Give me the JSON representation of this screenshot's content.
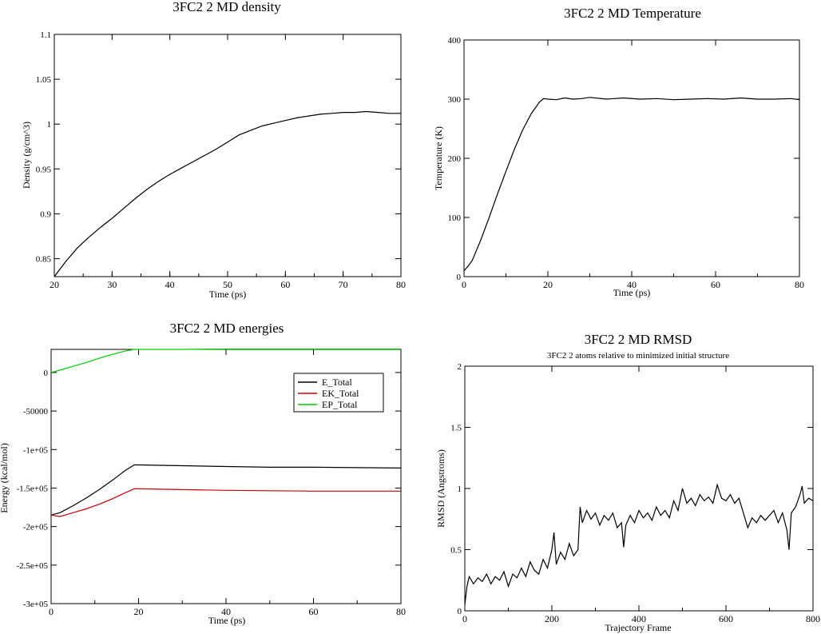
{
  "chart_data": [
    {
      "id": "density",
      "type": "line",
      "title": "3FC2 2 MD density",
      "xlabel": "Time (ps)",
      "ylabel": "Density (g/cm^3)",
      "xlim": [
        20,
        80
      ],
      "ylim": [
        0.83,
        1.1
      ],
      "xticks": [
        20,
        30,
        40,
        50,
        60,
        70,
        80
      ],
      "xtick_labels": [
        "20",
        "30",
        "40",
        "50",
        "60",
        "70",
        "80"
      ],
      "yticks": [
        0.85,
        0.9,
        0.95,
        1.0,
        1.05,
        1.1
      ],
      "ytick_labels": [
        "0.85",
        "0.9",
        "0.95",
        "1",
        "1.05",
        "1.1"
      ],
      "series": [
        {
          "color": "#000000",
          "x": [
            20,
            22,
            24,
            26,
            28,
            30,
            32,
            34,
            36,
            38,
            40,
            42,
            44,
            46,
            48,
            50,
            52,
            54,
            56,
            58,
            60,
            62,
            64,
            66,
            68,
            70,
            72,
            74,
            76,
            78,
            80
          ],
          "y": [
            0.83,
            0.847,
            0.862,
            0.874,
            0.885,
            0.895,
            0.906,
            0.917,
            0.927,
            0.936,
            0.944,
            0.951,
            0.958,
            0.965,
            0.972,
            0.98,
            0.988,
            0.993,
            0.998,
            1.001,
            1.004,
            1.007,
            1.009,
            1.011,
            1.012,
            1.013,
            1.013,
            1.014,
            1.013,
            1.012,
            1.012
          ]
        }
      ]
    },
    {
      "id": "temperature",
      "type": "line",
      "title": "3FC2 2 MD Temperature",
      "xlabel": "Time (ps)",
      "ylabel": "Temperature (K)",
      "xlim": [
        0,
        80
      ],
      "ylim": [
        0,
        400
      ],
      "xticks": [
        0,
        20,
        40,
        60,
        80
      ],
      "xtick_labels": [
        "0",
        "20",
        "40",
        "60",
        "80"
      ],
      "yticks": [
        0,
        100,
        200,
        300,
        400
      ],
      "ytick_labels": [
        "0",
        "100",
        "200",
        "300",
        "400"
      ],
      "series": [
        {
          "color": "#000000",
          "x": [
            0,
            1,
            2,
            4,
            6,
            8,
            10,
            12,
            14,
            16,
            18,
            19,
            20,
            22,
            24,
            26,
            28,
            30,
            34,
            38,
            42,
            46,
            50,
            54,
            58,
            62,
            66,
            70,
            74,
            78,
            80
          ],
          "y": [
            10,
            18,
            28,
            62,
            100,
            140,
            178,
            215,
            248,
            275,
            295,
            301,
            300,
            299,
            302,
            300,
            301,
            303,
            300,
            302,
            300,
            301,
            299,
            300,
            301,
            300,
            302,
            300,
            300,
            301,
            299
          ]
        }
      ]
    },
    {
      "id": "energies",
      "type": "line",
      "title": "3FC2 2 MD energies",
      "xlabel": "Time (ps)",
      "ylabel": "Energy (kcal/mol)",
      "xlim": [
        0,
        80
      ],
      "ylim": [
        -300000,
        30000
      ],
      "xticks": [
        0,
        20,
        40,
        60,
        80
      ],
      "xtick_labels": [
        "0",
        "20",
        "40",
        "60",
        "80"
      ],
      "yticks": [
        0,
        -50000,
        -100000,
        -150000,
        -200000,
        -250000,
        -300000
      ],
      "ytick_labels": [
        "0",
        "-50000",
        "-1e+05",
        "-1.5e+05",
        "-2e+05",
        "-2.5e+05",
        "-3e+05"
      ],
      "legend": "top-right",
      "series": [
        {
          "name": "E_Total",
          "color": "#000000",
          "x": [
            0,
            2,
            5,
            8,
            11,
            14,
            17,
            19,
            20,
            30,
            40,
            50,
            60,
            70,
            80
          ],
          "y": [
            -185000,
            -182000,
            -173000,
            -163000,
            -152000,
            -140000,
            -127000,
            -120000,
            -120000,
            -121000,
            -122000,
            -123000,
            -123000,
            -123500,
            -124000
          ]
        },
        {
          "name": "EK_Total",
          "color": "#cc0000",
          "x": [
            0,
            2,
            5,
            8,
            11,
            14,
            17,
            19,
            20,
            30,
            40,
            50,
            60,
            70,
            80
          ],
          "y": [
            -185000,
            -187000,
            -182000,
            -177000,
            -171000,
            -164000,
            -156000,
            -151000,
            -151000,
            -152000,
            -153000,
            -153500,
            -154000,
            -154000,
            -154000
          ]
        },
        {
          "name": "EP_Total",
          "color": "#00cc00",
          "x": [
            0,
            2,
            5,
            8,
            11,
            14,
            17,
            19,
            20,
            30,
            40,
            50,
            60,
            70,
            80
          ],
          "y": [
            0,
            3000,
            8000,
            13000,
            18500,
            23500,
            28000,
            30000,
            30000,
            30000,
            30500,
            30500,
            30500,
            30500,
            30500
          ]
        }
      ]
    },
    {
      "id": "rmsd",
      "type": "line",
      "title": "3FC2 2 MD RMSD",
      "subtitle": "3FC2 2 atoms relative to minimized initial structure",
      "xlabel": "Trajectory Frame",
      "ylabel": "RMSD (Angstroms)",
      "xlim": [
        0,
        800
      ],
      "ylim": [
        0,
        2
      ],
      "xticks": [
        0,
        200,
        400,
        600,
        800
      ],
      "xtick_labels": [
        "0",
        "200",
        "400",
        "600",
        "800"
      ],
      "yticks": [
        0,
        0.5,
        1.0,
        1.5,
        2.0
      ],
      "ytick_labels": [
        "0",
        "0.5",
        "1",
        "1.5",
        "2"
      ],
      "series": [
        {
          "color": "#000000",
          "x": [
            0,
            5,
            10,
            20,
            30,
            40,
            50,
            60,
            70,
            80,
            90,
            100,
            110,
            120,
            130,
            140,
            150,
            160,
            170,
            180,
            190,
            200,
            205,
            210,
            220,
            230,
            240,
            250,
            260,
            265,
            270,
            280,
            290,
            300,
            310,
            320,
            330,
            340,
            350,
            360,
            365,
            370,
            380,
            390,
            400,
            410,
            420,
            430,
            440,
            450,
            460,
            470,
            480,
            490,
            500,
            510,
            520,
            530,
            540,
            550,
            560,
            570,
            580,
            590,
            600,
            610,
            620,
            630,
            640,
            650,
            660,
            670,
            680,
            690,
            700,
            710,
            720,
            730,
            740,
            745,
            750,
            760,
            770,
            775,
            780,
            790,
            800
          ],
          "y": [
            0.05,
            0.2,
            0.28,
            0.22,
            0.27,
            0.24,
            0.3,
            0.22,
            0.28,
            0.25,
            0.32,
            0.2,
            0.3,
            0.27,
            0.35,
            0.28,
            0.4,
            0.33,
            0.3,
            0.42,
            0.35,
            0.5,
            0.64,
            0.38,
            0.48,
            0.42,
            0.55,
            0.45,
            0.5,
            0.85,
            0.72,
            0.82,
            0.75,
            0.8,
            0.7,
            0.78,
            0.74,
            0.8,
            0.68,
            0.72,
            0.52,
            0.7,
            0.78,
            0.72,
            0.82,
            0.76,
            0.8,
            0.74,
            0.85,
            0.78,
            0.82,
            0.76,
            0.9,
            0.82,
            1.0,
            0.88,
            0.92,
            0.86,
            0.95,
            0.9,
            0.93,
            0.88,
            1.03,
            0.92,
            0.9,
            0.95,
            0.88,
            0.92,
            0.8,
            0.68,
            0.76,
            0.72,
            0.78,
            0.74,
            0.78,
            0.82,
            0.72,
            0.8,
            0.66,
            0.5,
            0.8,
            0.85,
            0.95,
            1.02,
            0.88,
            0.92,
            0.9
          ]
        }
      ]
    }
  ]
}
